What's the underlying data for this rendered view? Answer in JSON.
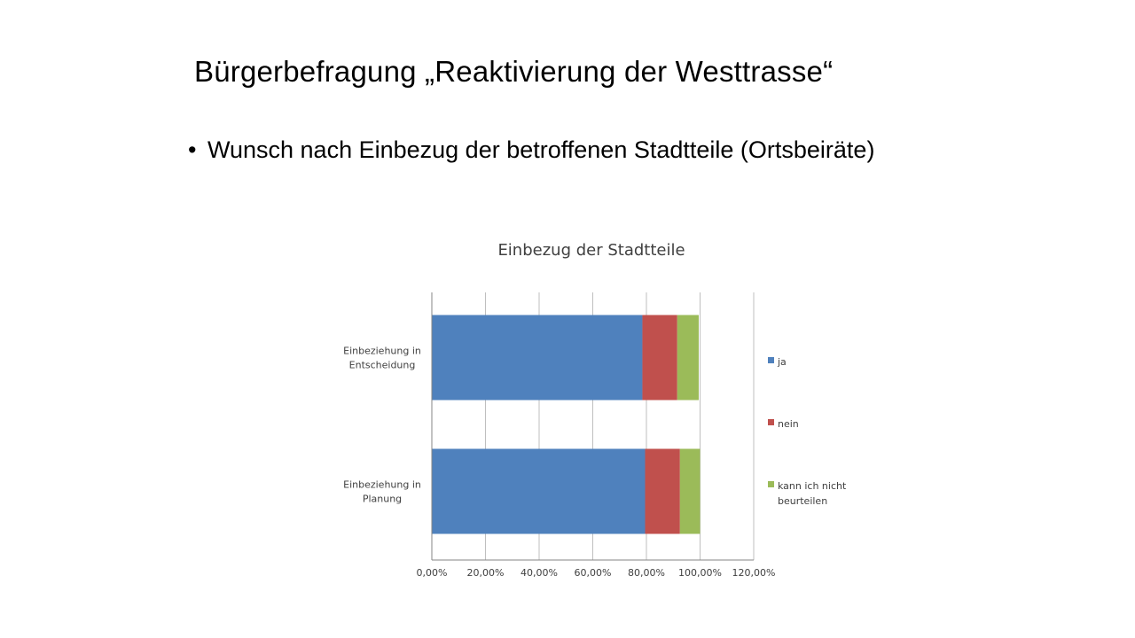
{
  "slide": {
    "title": "Bürgerbefragung „Reaktivierung der Westtrasse“",
    "bullets": [
      "Wunsch nach Einbezug der betroffenen Stadtteile (Ortsbeiräte)"
    ]
  },
  "chart_data": {
    "type": "bar",
    "orientation": "horizontal",
    "stacked": true,
    "title": "Einbezug der Stadtteile",
    "categories": [
      [
        "Einbeziehung in",
        "Entscheidung"
      ],
      [
        "Einbeziehung in",
        "Planung"
      ]
    ],
    "series": [
      {
        "name": "ja",
        "values": [
          78.5,
          79.5
        ],
        "color": "#4F81BD"
      },
      {
        "name": "nein",
        "values": [
          13.0,
          13.0
        ],
        "color": "#C0504D"
      },
      {
        "name": [
          "kann ich nicht",
          "beurteilen"
        ],
        "values": [
          8.0,
          7.5
        ],
        "color": "#9BBB59"
      }
    ],
    "x_ticks": [
      "0,00%",
      "20,00%",
      "40,00%",
      "60,00%",
      "80,00%",
      "100,00%",
      "120,00%"
    ],
    "xlim": [
      0,
      120
    ],
    "grid": true,
    "legend": "right"
  }
}
